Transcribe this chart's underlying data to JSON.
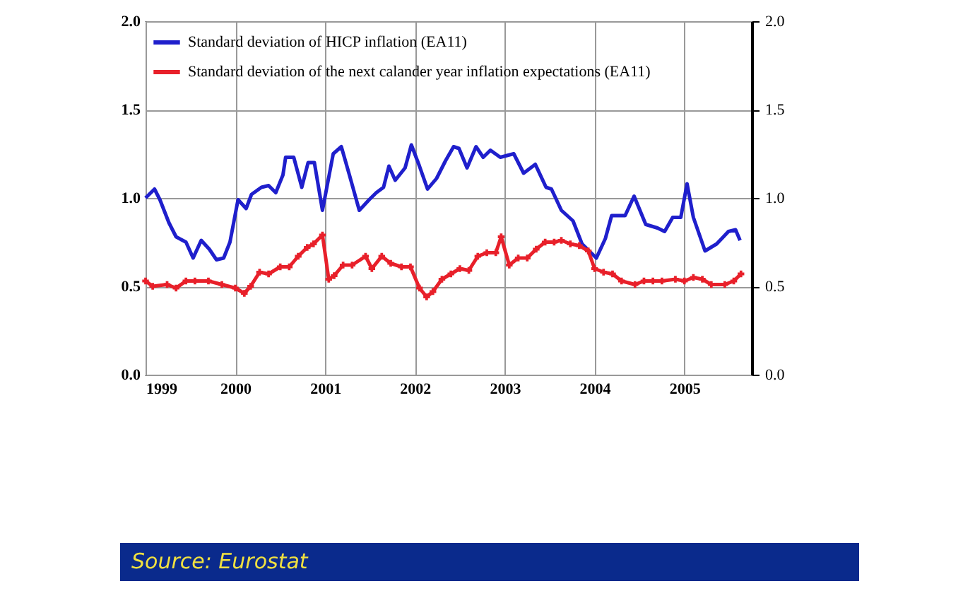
{
  "chart_data": {
    "type": "line",
    "x": [
      1999.0,
      1999.1,
      1999.16,
      1999.26,
      1999.34,
      1999.45,
      1999.53,
      1999.62,
      1999.71,
      1999.79,
      1999.87,
      1999.94,
      2000.03,
      2000.12,
      2000.18,
      2000.29,
      2000.37,
      2000.45,
      2000.53,
      2000.56,
      2000.65,
      2000.74,
      2000.81,
      2000.88,
      2000.97,
      2001.09,
      2001.18,
      2001.27,
      2001.38,
      2001.49,
      2001.57,
      2001.65,
      2001.71,
      2001.78,
      2001.89,
      2001.96,
      2002.05,
      2002.14,
      2002.24,
      2002.34,
      2002.43,
      2002.49,
      2002.58,
      2002.68,
      2002.76,
      2002.84,
      2002.95,
      2003.1,
      2003.21,
      2003.34,
      2003.46,
      2003.52,
      2003.63,
      2003.76,
      2003.86,
      2004.02,
      2004.12,
      2004.19,
      2004.34,
      2004.44,
      2004.57,
      2004.7,
      2004.78,
      2004.87,
      2004.96,
      2005.03,
      2005.1,
      2005.23,
      2005.36,
      2005.49,
      2005.57,
      2005.62
    ],
    "series": [
      {
        "name": "Standard deviation of HICP inflation (EA11)",
        "color": "#1f1fcc",
        "marker": "none",
        "values": [
          1.0,
          1.05,
          0.99,
          0.86,
          0.78,
          0.75,
          0.66,
          0.76,
          0.71,
          0.65,
          0.66,
          0.75,
          0.99,
          0.94,
          1.02,
          1.06,
          1.07,
          1.03,
          1.13,
          1.23,
          1.23,
          1.06,
          1.2,
          1.2,
          0.93,
          1.25,
          1.29,
          1.13,
          0.93,
          0.99,
          1.03,
          1.06,
          1.18,
          1.1,
          1.17,
          1.3,
          1.18,
          1.05,
          1.11,
          1.21,
          1.29,
          1.28,
          1.17,
          1.29,
          1.23,
          1.27,
          1.23,
          1.25,
          1.14,
          1.19,
          1.06,
          1.05,
          0.93,
          0.87,
          0.74,
          0.66,
          0.77,
          0.9,
          0.9,
          1.01,
          0.85,
          0.83,
          0.81,
          0.89,
          0.89,
          1.08,
          0.89,
          0.7,
          0.74,
          0.81,
          0.82,
          0.76
        ]
      },
      {
        "name": "Standard deviation of the next calander year inflation expectations (EA11)",
        "color": "#e8202a",
        "marker": "cross",
        "x": [
          1999.0,
          1999.08,
          1999.24,
          1999.34,
          1999.45,
          1999.55,
          1999.7,
          1999.85,
          2000.0,
          2000.1,
          2000.17,
          2000.27,
          2000.37,
          2000.5,
          2000.6,
          2000.7,
          2000.8,
          2000.87,
          2000.97,
          2001.04,
          2001.1,
          2001.2,
          2001.3,
          2001.45,
          2001.52,
          2001.63,
          2001.73,
          2001.85,
          2001.95,
          2002.05,
          2002.13,
          2002.2,
          2002.3,
          2002.4,
          2002.5,
          2002.6,
          2002.7,
          2002.8,
          2002.9,
          2002.96,
          2003.05,
          2003.15,
          2003.25,
          2003.35,
          2003.45,
          2003.55,
          2003.63,
          2003.73,
          2003.83,
          2003.93,
          2004.0,
          2004.1,
          2004.2,
          2004.3,
          2004.45,
          2004.55,
          2004.65,
          2004.75,
          2004.9,
          2005.0,
          2005.1,
          2005.2,
          2005.3,
          2005.45,
          2005.55,
          2005.63
        ],
        "values": [
          0.53,
          0.5,
          0.51,
          0.49,
          0.53,
          0.53,
          0.53,
          0.51,
          0.49,
          0.46,
          0.5,
          0.58,
          0.57,
          0.61,
          0.61,
          0.67,
          0.72,
          0.74,
          0.79,
          0.54,
          0.56,
          0.62,
          0.62,
          0.67,
          0.6,
          0.67,
          0.63,
          0.61,
          0.61,
          0.49,
          0.44,
          0.47,
          0.54,
          0.57,
          0.6,
          0.59,
          0.67,
          0.69,
          0.69,
          0.78,
          0.62,
          0.66,
          0.66,
          0.71,
          0.75,
          0.75,
          0.76,
          0.74,
          0.73,
          0.7,
          0.6,
          0.58,
          0.57,
          0.53,
          0.51,
          0.53,
          0.53,
          0.53,
          0.54,
          0.53,
          0.55,
          0.54,
          0.51,
          0.51,
          0.53,
          0.57
        ]
      }
    ],
    "xlim": [
      1999,
      2005.75
    ],
    "xticks": [
      1999,
      2000,
      2001,
      2002,
      2003,
      2004,
      2005
    ],
    "ylim": [
      0,
      2
    ],
    "yticks": [
      {
        "value": 0,
        "label": "0.0"
      },
      {
        "value": 0.5,
        "label": "0.5"
      },
      {
        "value": 1,
        "label": "1.0"
      },
      {
        "value": 1.5,
        "label": "1.5"
      },
      {
        "value": 2,
        "label": "2.0"
      }
    ],
    "y2lim": [
      0,
      2
    ],
    "y2ticks": [
      {
        "value": 0,
        "label": "0.0"
      },
      {
        "value": 0.5,
        "label": "0.5"
      },
      {
        "value": 1,
        "label": "1.0"
      },
      {
        "value": 1.5,
        "label": "1.5"
      },
      {
        "value": 2,
        "label": "2.0"
      }
    ],
    "grid": true,
    "legend": "top left",
    "line_style": "solid",
    "annotations": [
      "Source: Eurostat"
    ]
  }
}
